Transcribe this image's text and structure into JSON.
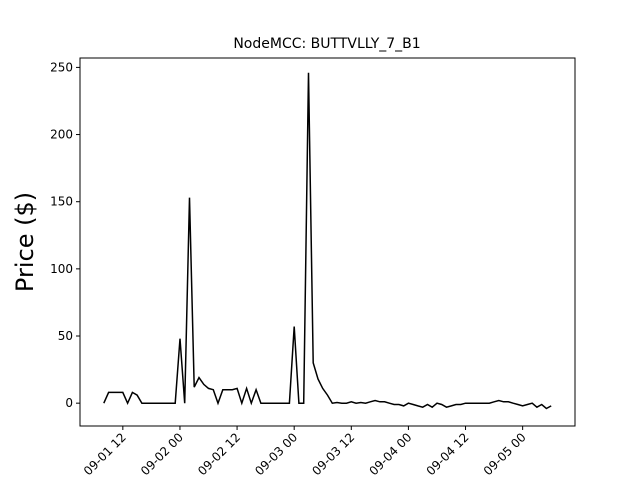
{
  "chart_data": {
    "type": "line",
    "title": "NodeMCC: BUTTVLLY_7_B1",
    "y_label": "Price ($)",
    "x": [
      "09-01 08",
      "09-01 09",
      "09-01 10",
      "09-01 11",
      "09-01 12",
      "09-01 13",
      "09-01 14",
      "09-01 15",
      "09-01 16",
      "09-01 17",
      "09-01 18",
      "09-01 19",
      "09-01 20",
      "09-01 21",
      "09-01 22",
      "09-01 23",
      "09-02 00",
      "09-02 01",
      "09-02 02",
      "09-02 03",
      "09-02 04",
      "09-02 05",
      "09-02 06",
      "09-02 07",
      "09-02 08",
      "09-02 09",
      "09-02 10",
      "09-02 11",
      "09-02 12",
      "09-02 13",
      "09-02 14",
      "09-02 15",
      "09-02 16",
      "09-02 17",
      "09-02 18",
      "09-02 19",
      "09-02 20",
      "09-02 21",
      "09-02 22",
      "09-02 23",
      "09-03 00",
      "09-03 01",
      "09-03 02",
      "09-03 03",
      "09-03 04",
      "09-03 05",
      "09-03 06",
      "09-03 07",
      "09-03 08",
      "09-03 09",
      "09-03 10",
      "09-03 11",
      "09-03 12",
      "09-03 13",
      "09-03 14",
      "09-03 15",
      "09-03 16",
      "09-03 17",
      "09-03 18",
      "09-03 19",
      "09-03 20",
      "09-03 21",
      "09-03 22",
      "09-03 23",
      "09-04 00",
      "09-04 01",
      "09-04 02",
      "09-04 03",
      "09-04 04",
      "09-04 05",
      "09-04 06",
      "09-04 07",
      "09-04 08",
      "09-04 09",
      "09-04 10",
      "09-04 11",
      "09-04 12",
      "09-04 13",
      "09-04 14",
      "09-04 15",
      "09-04 16",
      "09-04 17",
      "09-04 18",
      "09-04 19",
      "09-04 20",
      "09-04 21",
      "09-04 22",
      "09-04 23",
      "09-05 00",
      "09-05 01",
      "09-05 02",
      "09-05 03",
      "09-05 04",
      "09-05 05",
      "09-05 06"
    ],
    "series": [
      {
        "name": "BUTTVLLY_7_B1",
        "color": "#000000",
        "values": [
          0,
          8,
          8,
          8,
          8,
          0,
          8,
          6,
          0,
          0,
          0,
          0,
          0,
          0,
          0,
          0,
          48,
          0,
          153,
          12,
          19,
          14,
          11,
          10,
          0,
          10,
          10,
          10,
          11,
          0,
          11,
          0,
          10,
          0,
          0,
          0,
          0,
          0,
          0,
          0,
          57,
          0,
          0,
          246,
          30,
          18,
          11,
          6,
          0,
          0.5,
          0,
          0,
          1,
          0,
          0.5,
          0,
          1,
          2,
          1,
          1,
          0,
          -1,
          -1,
          -2,
          0,
          -1,
          -2,
          -3,
          -1,
          -3,
          0,
          -1,
          -3,
          -2,
          -1,
          -1,
          0,
          0,
          0,
          0,
          0,
          0,
          1,
          2,
          1,
          1,
          0,
          -1,
          -2,
          -1,
          0,
          -3,
          -1,
          -4,
          -2
        ]
      }
    ],
    "xlim": [
      "09-01 03",
      "09-05 11"
    ],
    "xticks": [
      "09-01 12",
      "09-02 00",
      "09-02 12",
      "09-03 00",
      "09-03 12",
      "09-04 00",
      "09-04 12",
      "09-05 00"
    ],
    "ylim": [
      -17,
      257
    ],
    "yticks": [
      0,
      50,
      100,
      150,
      200,
      250
    ]
  }
}
